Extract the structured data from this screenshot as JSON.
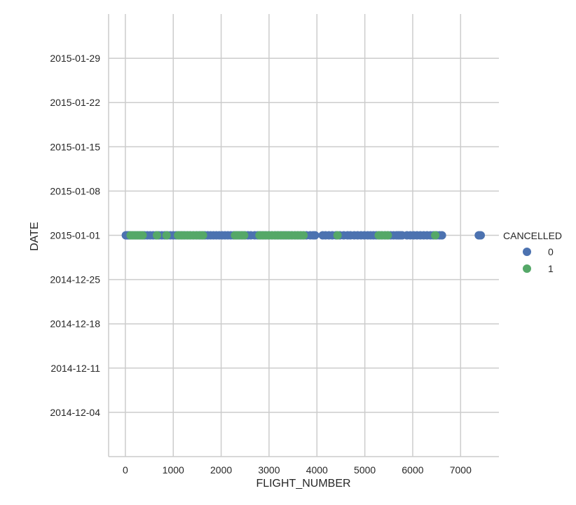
{
  "chart_data": {
    "type": "scatter",
    "xlabel": "FLIGHT_NUMBER",
    "ylabel": "DATE",
    "xlim": [
      -350,
      7800
    ],
    "ylim": [
      "2014-11-27",
      "2015-02-05"
    ],
    "x_ticks": [
      0,
      1000,
      2000,
      3000,
      4000,
      5000,
      6000,
      7000
    ],
    "y_ticks": [
      "2014-12-04",
      "2014-12-11",
      "2014-12-18",
      "2014-12-25",
      "2015-01-01",
      "2015-01-08",
      "2015-01-15",
      "2015-01-22",
      "2015-01-29"
    ],
    "grid": true,
    "legend": {
      "title": "CANCELLED",
      "placement": "right",
      "entries": [
        {
          "label": "0",
          "color": "#4c72b0"
        },
        {
          "label": "1",
          "color": "#55a868"
        }
      ]
    },
    "series": [
      {
        "name": "0",
        "color": "#4c72b0",
        "date": "2015-01-01",
        "x": [
          10,
          40,
          70,
          100,
          150,
          200,
          250,
          300,
          350,
          400,
          460,
          520,
          580,
          640,
          700,
          760,
          820,
          880,
          940,
          1000,
          1060,
          1120,
          1180,
          1240,
          1300,
          1360,
          1420,
          1480,
          1540,
          1600,
          1660,
          1720,
          1780,
          1840,
          1900,
          1960,
          2020,
          2080,
          2140,
          2200,
          2260,
          2320,
          2380,
          2440,
          2500,
          2560,
          2620,
          2700,
          2760,
          2820,
          2880,
          2940,
          3000,
          3060,
          3120,
          3180,
          3240,
          3300,
          3360,
          3420,
          3480,
          3540,
          3600,
          3660,
          3720,
          3780,
          3860,
          3920,
          3960,
          4120,
          4180,
          4250,
          4320,
          4400,
          4480,
          4560,
          4640,
          4700,
          4780,
          4850,
          4920,
          4990,
          5060,
          5120,
          5180,
          5240,
          5300,
          5360,
          5420,
          5480,
          5540,
          5600,
          5660,
          5700,
          5740,
          5780,
          5880,
          5950,
          6020,
          6090,
          6160,
          6230,
          6300,
          6370,
          6430,
          6500,
          6560,
          6610,
          7380,
          7420
        ]
      },
      {
        "name": "1",
        "color": "#55a868",
        "date": "2015-01-01",
        "x": [
          110,
          160,
          210,
          260,
          310,
          360,
          660,
          860,
          1100,
          1160,
          1220,
          1290,
          1350,
          1420,
          1490,
          1560,
          1620,
          2290,
          2350,
          2420,
          2480,
          2800,
          2860,
          2920,
          2990,
          3060,
          3130,
          3190,
          3260,
          3330,
          3400,
          3470,
          3540,
          3600,
          3660,
          3720,
          4430,
          5290,
          5350,
          5420,
          5480,
          6470
        ]
      }
    ]
  }
}
